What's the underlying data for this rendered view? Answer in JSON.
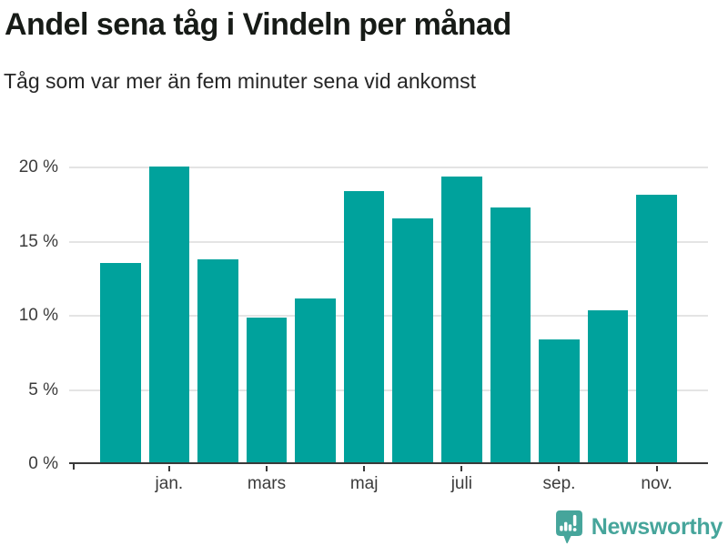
{
  "header": {
    "title": "Andel sena tåg i Vindeln per månad",
    "subtitle": "Tåg som var mer än fem minuter sena vid ankomst"
  },
  "chart_data": {
    "type": "bar",
    "title": "Andel sena tåg i Vindeln per månad",
    "subtitle": "Tåg som var mer än fem minuter sena vid ankomst",
    "values": [
      13.6,
      20.1,
      13.8,
      9.9,
      11.2,
      18.4,
      16.6,
      19.4,
      17.3,
      8.4,
      10.4,
      18.2
    ],
    "unit": "%",
    "x_tick_labels": [
      "jan.",
      "mars",
      "maj",
      "juli",
      "sep.",
      "nov."
    ],
    "x_tick_bar_indices": [
      1,
      3,
      5,
      7,
      9,
      11
    ],
    "y_tick_values": [
      0,
      5,
      10,
      15,
      20
    ],
    "y_tick_labels": [
      "0 %",
      "5 %",
      "10 %",
      "15 %",
      "20 %"
    ],
    "ylim": [
      0,
      21.5
    ],
    "xlabel": "",
    "ylabel": "",
    "grid": true,
    "legend": "none",
    "bar_color": "#00a29c"
  },
  "footer": {
    "brand": "Newsworthy",
    "logo_icon": "newsworthy-speech-bubble-barchart-icon",
    "brand_color": "#46a59b"
  },
  "colors": {
    "bar": "#00a29c",
    "title_text": "#171b17",
    "subtitle_text": "#262626",
    "axis_text": "#3c3c3c",
    "gridline": "#e4e4e4",
    "axis_line": "#3a3a3a",
    "logo": "#46a59b",
    "background": "#ffffff"
  }
}
